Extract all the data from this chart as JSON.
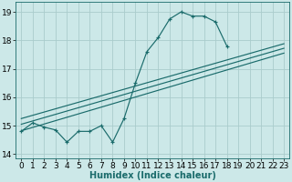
{
  "title": "",
  "xlabel": "Humidex (Indice chaleur)",
  "ylabel": "",
  "background_color": "#cce8e8",
  "grid_color": "#aacccc",
  "line_color": "#1a6b6b",
  "xlim": [
    -0.5,
    23.5
  ],
  "ylim": [
    13.85,
    19.35
  ],
  "yticks": [
    14,
    15,
    16,
    17,
    18,
    19
  ],
  "xticks": [
    0,
    1,
    2,
    3,
    4,
    5,
    6,
    7,
    8,
    9,
    10,
    11,
    12,
    13,
    14,
    15,
    16,
    17,
    18,
    19,
    20,
    21,
    22,
    23
  ],
  "line1_x": [
    0,
    1,
    2,
    3,
    4,
    5,
    6,
    7,
    8,
    9,
    10,
    11,
    12,
    13,
    14,
    15,
    16,
    17,
    18
  ],
  "line1_y": [
    14.8,
    15.1,
    14.95,
    14.85,
    14.42,
    14.8,
    14.8,
    15.0,
    14.42,
    15.25,
    16.5,
    17.6,
    18.1,
    18.75,
    19.0,
    18.85,
    18.85,
    18.65,
    17.8
  ],
  "line2_x": [
    0,
    23
  ],
  "line2_y": [
    14.82,
    17.55
  ],
  "line3_x": [
    0,
    23
  ],
  "line3_y": [
    15.05,
    17.72
  ],
  "line4_x": [
    0,
    23
  ],
  "line4_y": [
    15.25,
    17.88
  ],
  "font_size_label": 7,
  "font_size_tick": 6.5
}
